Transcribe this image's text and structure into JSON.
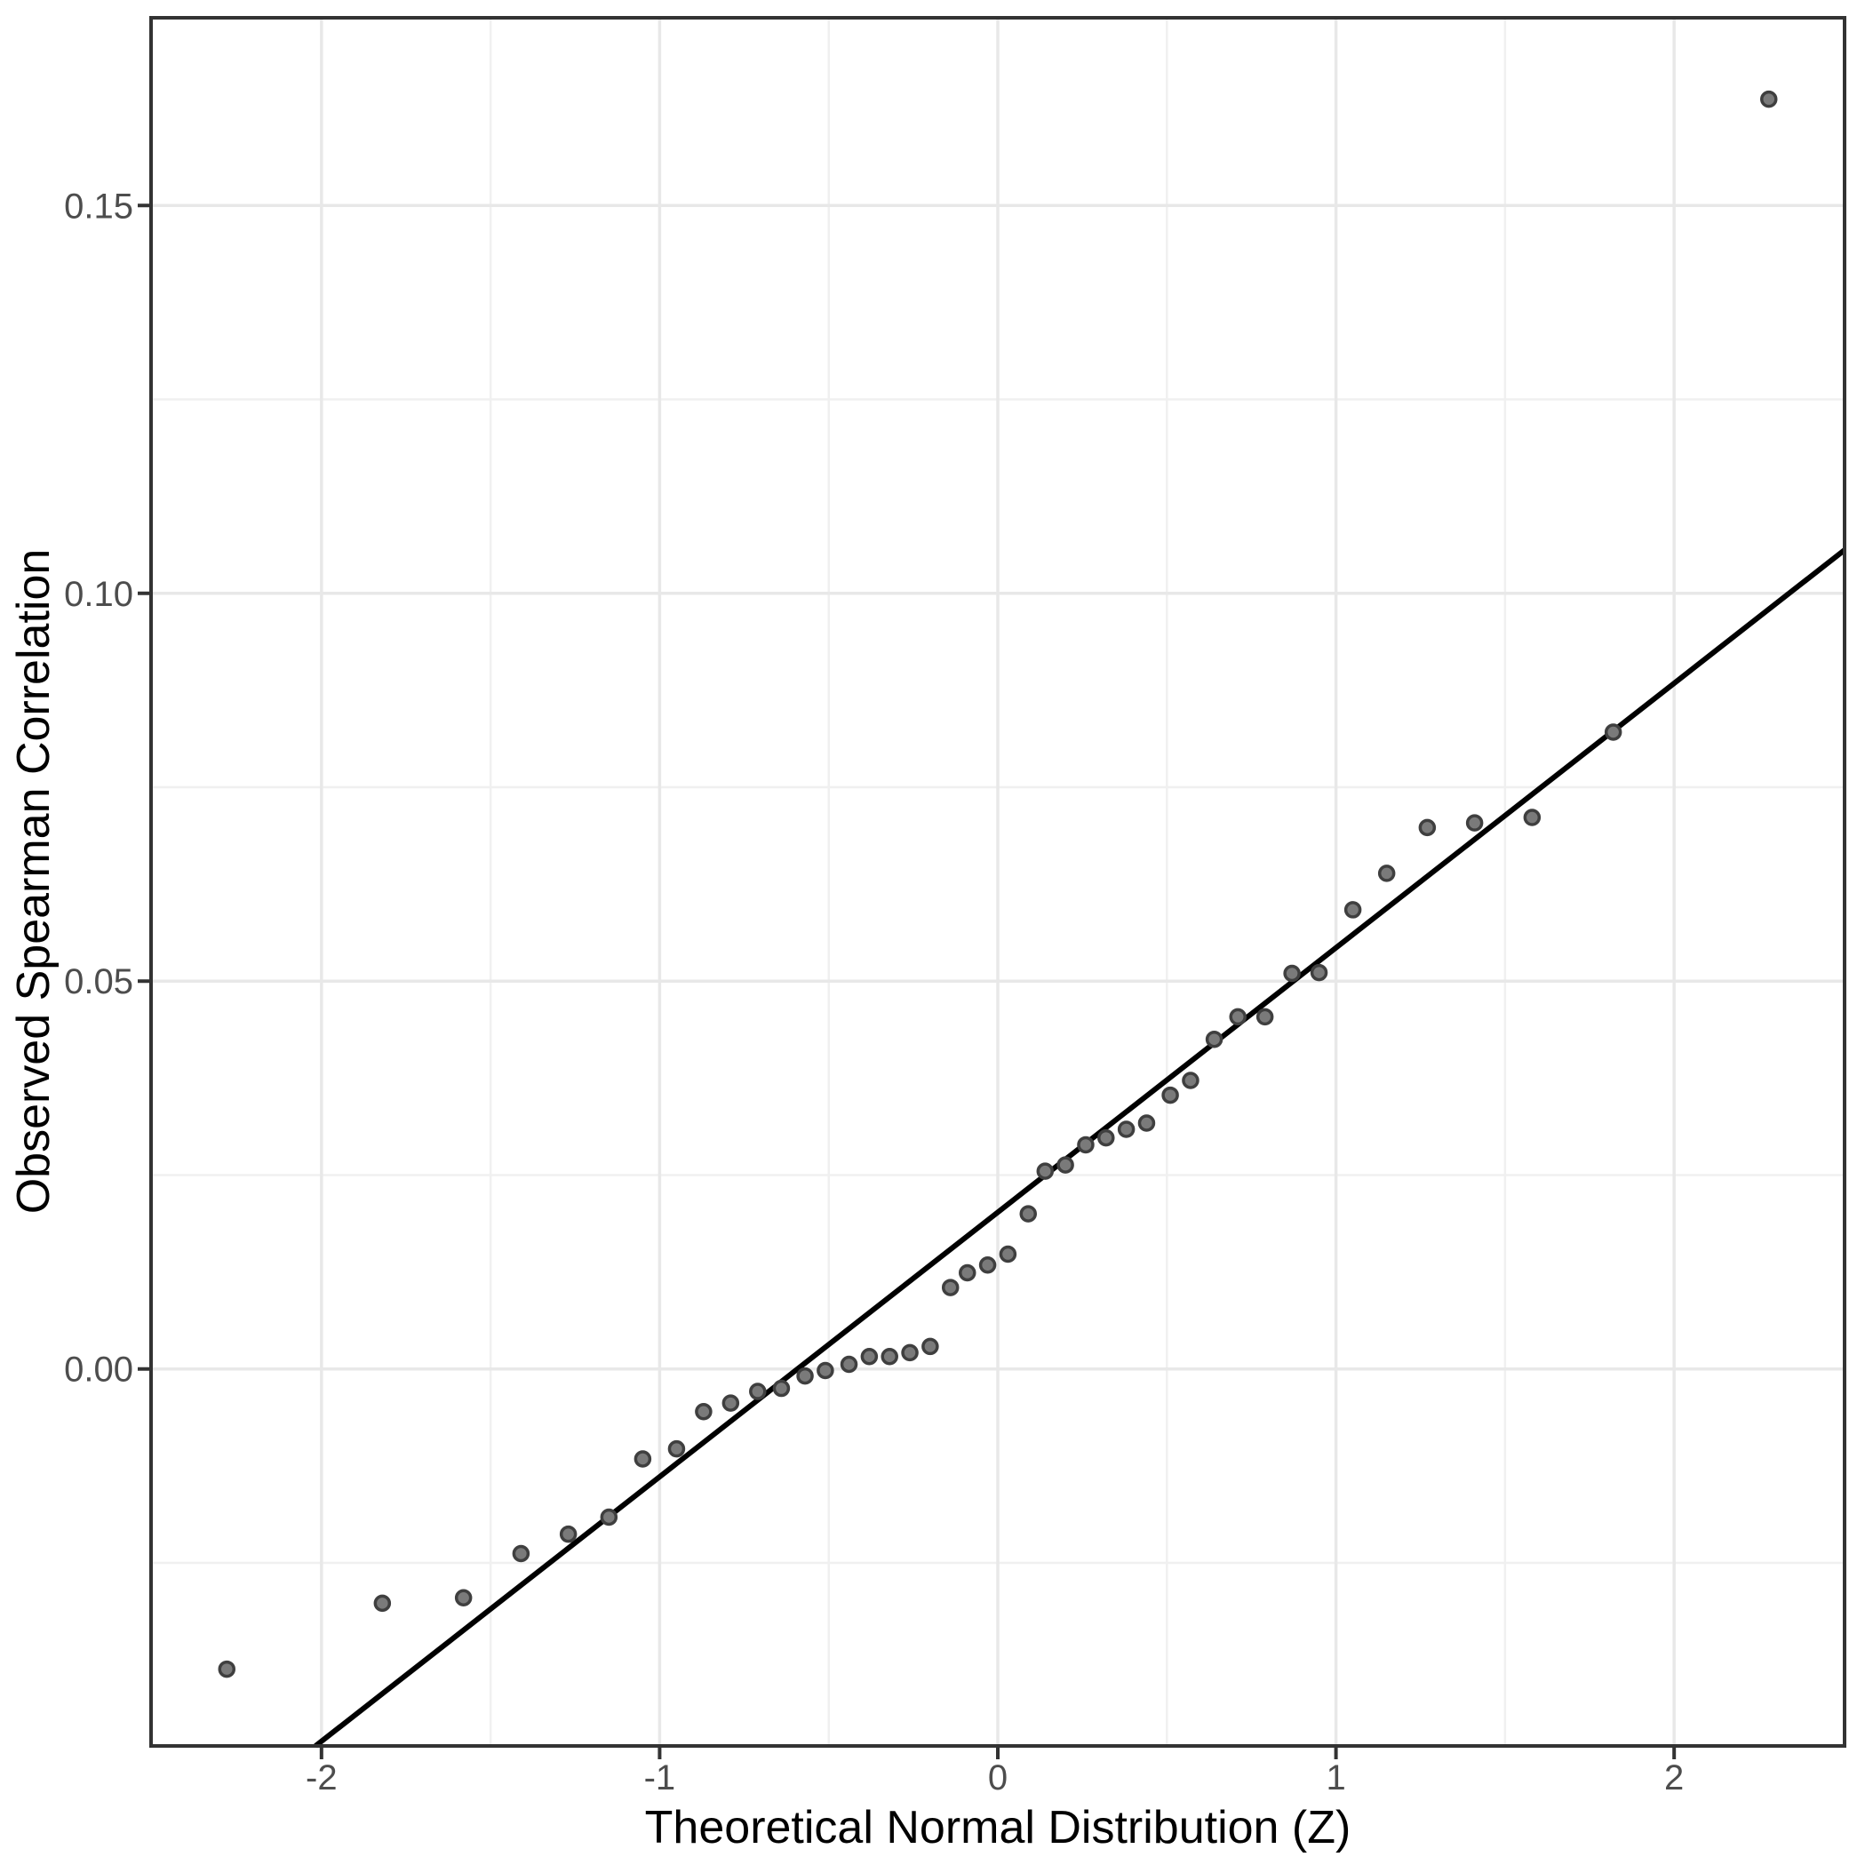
{
  "chart_data": {
    "type": "scatter",
    "title": "",
    "xlabel": "Theoretical Normal Distribution (Z)",
    "ylabel": "Observed Spearman Correlation",
    "xlim": [
      -2.504,
      2.504
    ],
    "ylim": [
      -0.0486,
      0.1742
    ],
    "x_ticks": [
      -2,
      -1,
      0,
      1,
      2
    ],
    "x_tick_labels": [
      "-2",
      "-1",
      "0",
      "1",
      "2"
    ],
    "y_ticks": [
      0.0,
      0.05,
      0.1,
      0.15
    ],
    "y_tick_labels": [
      "0.00",
      "0.05",
      "0.10",
      "0.15"
    ],
    "x_minor_gridlines": [
      -1.5,
      -0.5,
      0.5,
      1.5
    ],
    "y_minor_gridlines": [
      -0.025,
      0.025,
      0.075,
      0.125
    ],
    "grid": "on",
    "legend": "none",
    "series": [
      {
        "name": "observed-vs-theoretical-quantiles",
        "x": [
          -2.28,
          -1.82,
          -1.58,
          -1.41,
          -1.27,
          -1.15,
          -1.05,
          -0.95,
          -0.87,
          -0.79,
          -0.71,
          -0.64,
          -0.57,
          -0.51,
          -0.44,
          -0.38,
          -0.32,
          -0.26,
          -0.2,
          -0.14,
          -0.09,
          -0.03,
          0.03,
          0.09,
          0.14,
          0.2,
          0.26,
          0.32,
          0.38,
          0.44,
          0.51,
          0.57,
          0.64,
          0.71,
          0.79,
          0.87,
          0.95,
          1.05,
          1.15,
          1.27,
          1.41,
          1.58,
          1.82,
          2.28
        ],
        "y": [
          -0.0387,
          -0.0302,
          -0.0295,
          -0.0238,
          -0.0213,
          -0.0191,
          -0.0116,
          -0.0103,
          -0.0055,
          -0.0044,
          -0.0029,
          -0.0025,
          -0.0009,
          -0.0002,
          0.0006,
          0.0016,
          0.0016,
          0.0021,
          0.0029,
          0.0105,
          0.0124,
          0.0134,
          0.0148,
          0.02,
          0.0255,
          0.0263,
          0.0289,
          0.0298,
          0.0309,
          0.0317,
          0.0353,
          0.0372,
          0.0425,
          0.0454,
          0.0454,
          0.051,
          0.0511,
          0.0592,
          0.0639,
          0.0698,
          0.0704,
          0.0711,
          0.0821,
          0.1637
        ]
      }
    ],
    "ref_line": {
      "intercept": 0.0202,
      "slope": 0.0341
    }
  },
  "colors": {
    "point_fill": "#7a7a7a",
    "point_stroke": "#3f3f3f",
    "ref_line": "#000000",
    "grid_major": "#e8e8e8",
    "grid_minor": "#f0f0f0",
    "panel_border": "#333333",
    "tick_mark": "#333333",
    "tick_label": "#4d4d4d",
    "axis_title": "#000000",
    "background": "#ffffff"
  }
}
